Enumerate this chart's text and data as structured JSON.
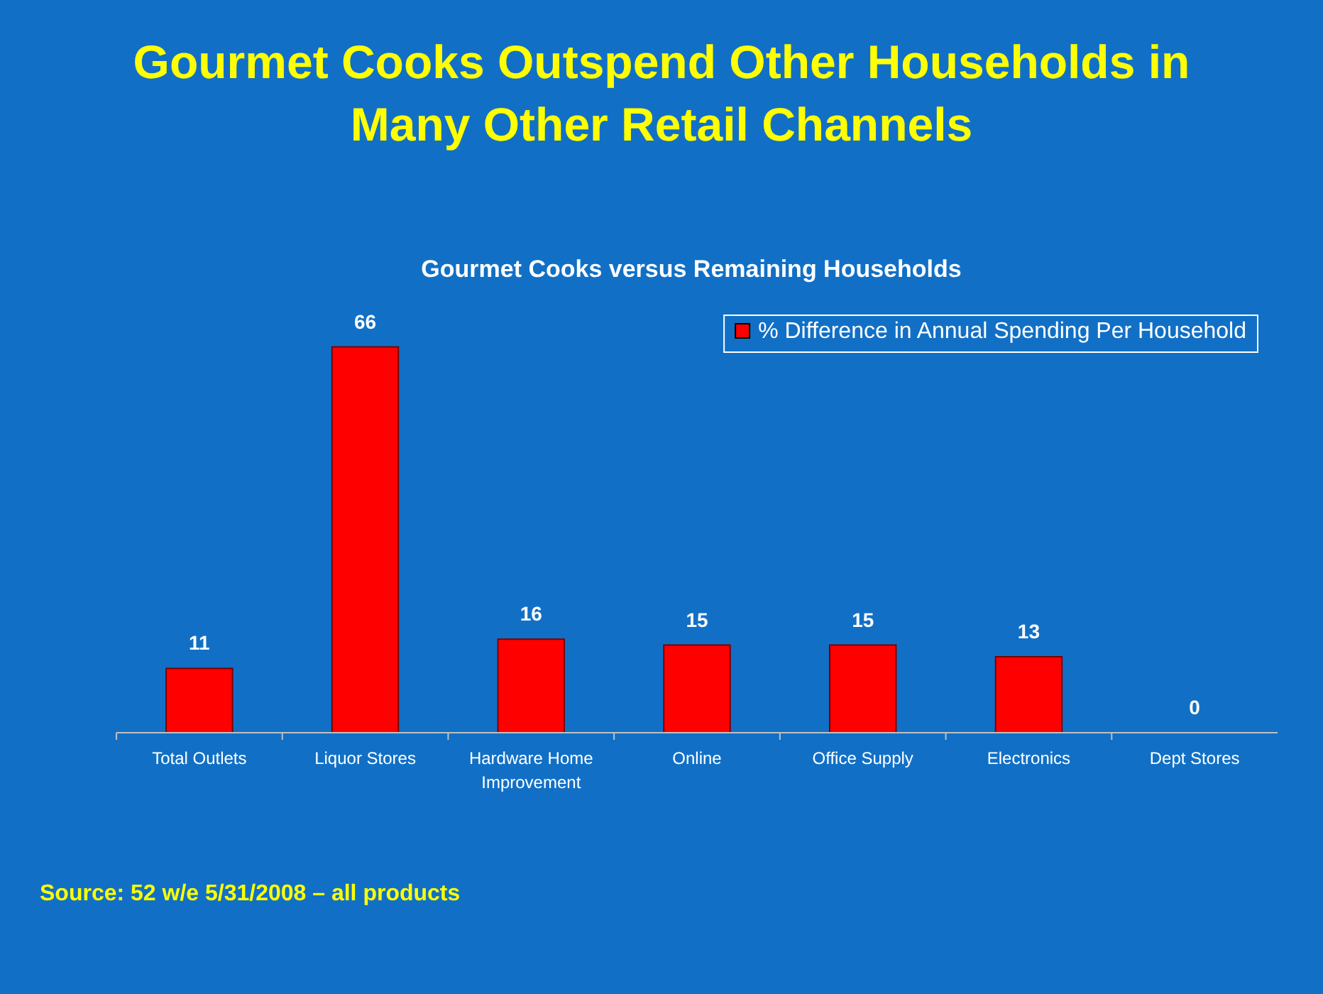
{
  "chart_data": {
    "type": "bar",
    "title": "Gourmet Cooks Outspend Other Households in Many Other Retail Channels",
    "subtitle": "Gourmet Cooks versus Remaining Households",
    "categories": [
      "Total Outlets",
      "Liquor Stores",
      "Hardware Home Improvement",
      "Online",
      "Office Supply",
      "Electronics",
      "Dept Stores"
    ],
    "series": [
      {
        "name": "% Difference in Annual Spending Per Household",
        "color": "#ff0000",
        "values": [
          11,
          66,
          16,
          15,
          15,
          13,
          0
        ]
      }
    ],
    "data_labels": true,
    "legend": "top right",
    "grid": false,
    "annotations": [
      "Source: 52 w/e 5/31/2008 – all products"
    ]
  }
}
